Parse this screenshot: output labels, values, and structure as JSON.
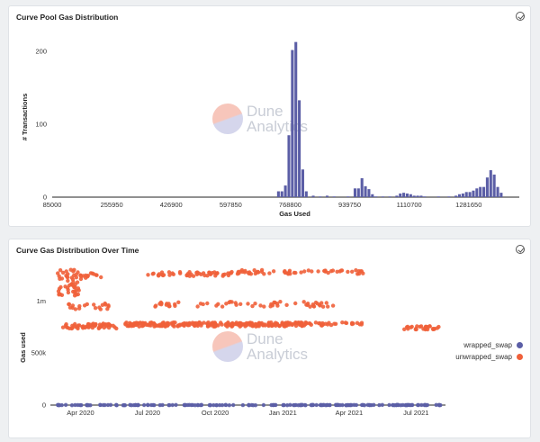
{
  "panel1": {
    "title": "Curve Pool Gas Distribution",
    "watermark": [
      "Dune",
      "Analytics"
    ],
    "icon": "check-circle-icon"
  },
  "panel2": {
    "title": "Curve Gas Distribution Over Time",
    "watermark": [
      "Dune",
      "Analytics"
    ],
    "icon": "check-circle-icon"
  },
  "chart_data": [
    {
      "type": "bar",
      "title": "Curve Pool Gas Distribution",
      "xlabel": "Gas Used",
      "ylabel": "# Transactions",
      "xlim": [
        85000,
        1427000
      ],
      "ylim": [
        0,
        220
      ],
      "yticks": [
        0,
        100,
        200
      ],
      "xticks": [
        "85000",
        "255950",
        "426900",
        "597850",
        "768800",
        "939750",
        "1110700",
        "1281650"
      ],
      "xtick_values": [
        85000,
        255950,
        426900,
        597850,
        768800,
        939750,
        1110700,
        1281650
      ],
      "bar_color": "#5b5ea6",
      "bins": [
        [
          735000,
          8
        ],
        [
          745000,
          8
        ],
        [
          755000,
          16
        ],
        [
          765000,
          85
        ],
        [
          775000,
          202
        ],
        [
          785000,
          213
        ],
        [
          795000,
          133
        ],
        [
          805000,
          38
        ],
        [
          815000,
          8
        ],
        [
          835000,
          2
        ],
        [
          855000,
          1
        ],
        [
          875000,
          2
        ],
        [
          895000,
          1
        ],
        [
          935000,
          1
        ],
        [
          955000,
          12
        ],
        [
          965000,
          12
        ],
        [
          975000,
          26
        ],
        [
          985000,
          15
        ],
        [
          995000,
          11
        ],
        [
          1005000,
          4
        ],
        [
          1015000,
          1
        ],
        [
          1035000,
          1
        ],
        [
          1055000,
          1
        ],
        [
          1075000,
          2
        ],
        [
          1085000,
          5
        ],
        [
          1095000,
          6
        ],
        [
          1105000,
          5
        ],
        [
          1115000,
          4
        ],
        [
          1125000,
          2
        ],
        [
          1135000,
          2
        ],
        [
          1145000,
          2
        ],
        [
          1155000,
          1
        ],
        [
          1195000,
          1
        ],
        [
          1225000,
          1
        ],
        [
          1245000,
          2
        ],
        [
          1255000,
          4
        ],
        [
          1265000,
          5
        ],
        [
          1275000,
          7
        ],
        [
          1285000,
          7
        ],
        [
          1295000,
          9
        ],
        [
          1305000,
          12
        ],
        [
          1315000,
          14
        ],
        [
          1325000,
          14
        ],
        [
          1335000,
          27
        ],
        [
          1345000,
          37
        ],
        [
          1355000,
          31
        ],
        [
          1365000,
          14
        ],
        [
          1375000,
          6
        ]
      ]
    },
    {
      "type": "scatter",
      "title": "Curve Gas Distribution Over Time",
      "xlabel": "",
      "ylabel": "Gas used",
      "xlim": [
        "2020-02-20",
        "2021-08-10"
      ],
      "ylim": [
        0,
        1350000
      ],
      "yticks": [
        "0",
        "500k",
        "1m"
      ],
      "ytick_values": [
        0,
        500000,
        1000000
      ],
      "xticks": [
        "Apr 2020",
        "Jul 2020",
        "Oct 2020",
        "Jan 2021",
        "Apr 2021",
        "Jul 2021"
      ],
      "xtick_dates": [
        "2020-04-01",
        "2020-07-01",
        "2020-10-01",
        "2021-01-01",
        "2021-04-01",
        "2021-07-01"
      ],
      "legend_position": "right",
      "series": [
        {
          "name": "wrapped_swap",
          "color": "#5b5ea6",
          "bands": [
            {
              "start": "2020-03-01",
              "end": "2021-08-05",
              "y": 0,
              "spread": 2000,
              "points": 180
            }
          ]
        },
        {
          "name": "unwrapped_swap",
          "color": "#f0603a",
          "bands": [
            {
              "start": "2020-03-01",
              "end": "2020-03-30",
              "y": 1180000,
              "spread": 130000,
              "points": 45
            },
            {
              "start": "2020-03-05",
              "end": "2020-05-20",
              "y": 760000,
              "spread": 25000,
              "points": 60
            },
            {
              "start": "2020-03-10",
              "end": "2020-04-30",
              "y": 1240000,
              "spread": 30000,
              "points": 20
            },
            {
              "start": "2020-03-15",
              "end": "2020-05-10",
              "y": 950000,
              "spread": 30000,
              "points": 20
            },
            {
              "start": "2020-07-01",
              "end": "2020-11-01",
              "y": 1260000,
              "spread": 20000,
              "points": 50
            },
            {
              "start": "2020-11-01",
              "end": "2021-04-25",
              "y": 1280000,
              "spread": 20000,
              "points": 60
            },
            {
              "start": "2020-07-10",
              "end": "2021-03-15",
              "y": 970000,
              "spread": 25000,
              "points": 60
            },
            {
              "start": "2020-06-01",
              "end": "2021-02-01",
              "y": 775000,
              "spread": 20000,
              "points": 260
            },
            {
              "start": "2021-02-01",
              "end": "2021-04-20",
              "y": 780000,
              "spread": 15000,
              "points": 30
            },
            {
              "start": "2021-06-10",
              "end": "2021-08-05",
              "y": 740000,
              "spread": 20000,
              "points": 30
            }
          ]
        }
      ]
    }
  ]
}
